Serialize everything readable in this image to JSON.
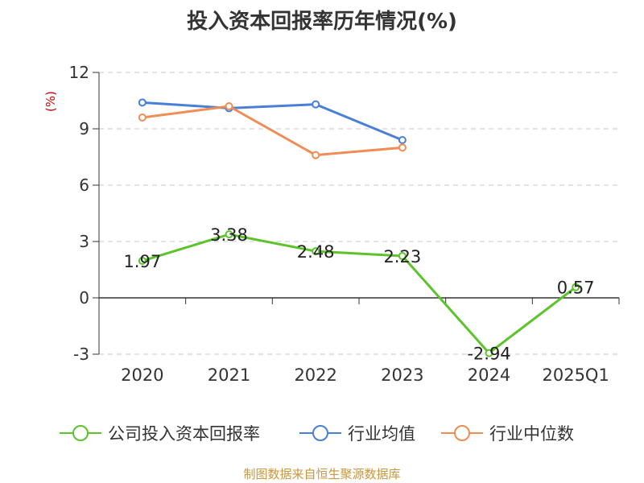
{
  "title": "投入资本回报率历年情况(%)",
  "source": "制图数据来自恒生聚源数据库",
  "chart_data": {
    "type": "line",
    "title": "投入资本回报率历年情况(%)",
    "ylabel": "(%)",
    "xlabel": "",
    "categories": [
      "2020",
      "2021",
      "2022",
      "2023",
      "2024",
      "2025Q1"
    ],
    "ylim": [
      -3,
      12
    ],
    "yticks": [
      -3,
      0,
      3,
      6,
      9,
      12
    ],
    "grid": true,
    "legend_position": "bottom",
    "series": [
      {
        "name": "公司投入资本回报率",
        "color": "#5cc42a",
        "values": [
          1.97,
          3.38,
          2.48,
          2.23,
          -2.94,
          0.57
        ],
        "labels": [
          "1.97",
          "3.38",
          "2.48",
          "2.23",
          "-2.94",
          "0.57"
        ]
      },
      {
        "name": "行业均值",
        "color": "#4a7fd8",
        "values": [
          10.4,
          10.1,
          10.3,
          8.4,
          null,
          null
        ]
      },
      {
        "name": "行业中位数",
        "color": "#f08c55",
        "values": [
          9.6,
          10.2,
          7.6,
          8.0,
          null,
          null
        ]
      }
    ]
  }
}
